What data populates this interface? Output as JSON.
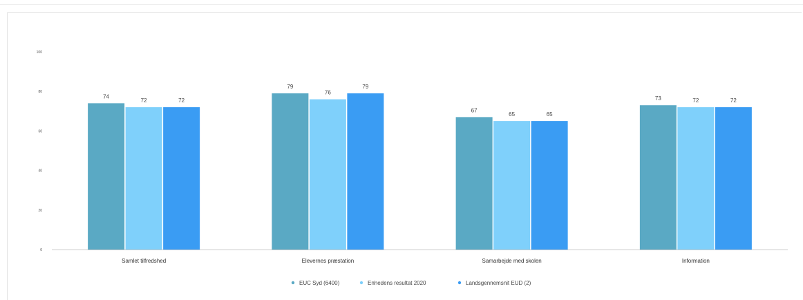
{
  "chart_data": {
    "type": "bar",
    "title": "",
    "xlabel": "",
    "ylabel": "",
    "ylim": [
      0,
      100
    ],
    "yticks": [
      0,
      20,
      40,
      60,
      80,
      100
    ],
    "categories": [
      "Samlet tilfredshed",
      "Elevernes præstation",
      "Samarbejde med skolen",
      "Information"
    ],
    "series": [
      {
        "name": "EUC Syd (6400)",
        "color": "#5aa9c4",
        "values": [
          74,
          79,
          67,
          73
        ]
      },
      {
        "name": "Enhedens resultat 2020",
        "color": "#7fd0fb",
        "values": [
          72,
          76,
          65,
          72
        ]
      },
      {
        "name": "Landsgennemsnit EUD (2)",
        "color": "#3a9cf3",
        "values": [
          72,
          79,
          65,
          72
        ]
      }
    ],
    "grid": false,
    "legend_position": "bottom"
  }
}
